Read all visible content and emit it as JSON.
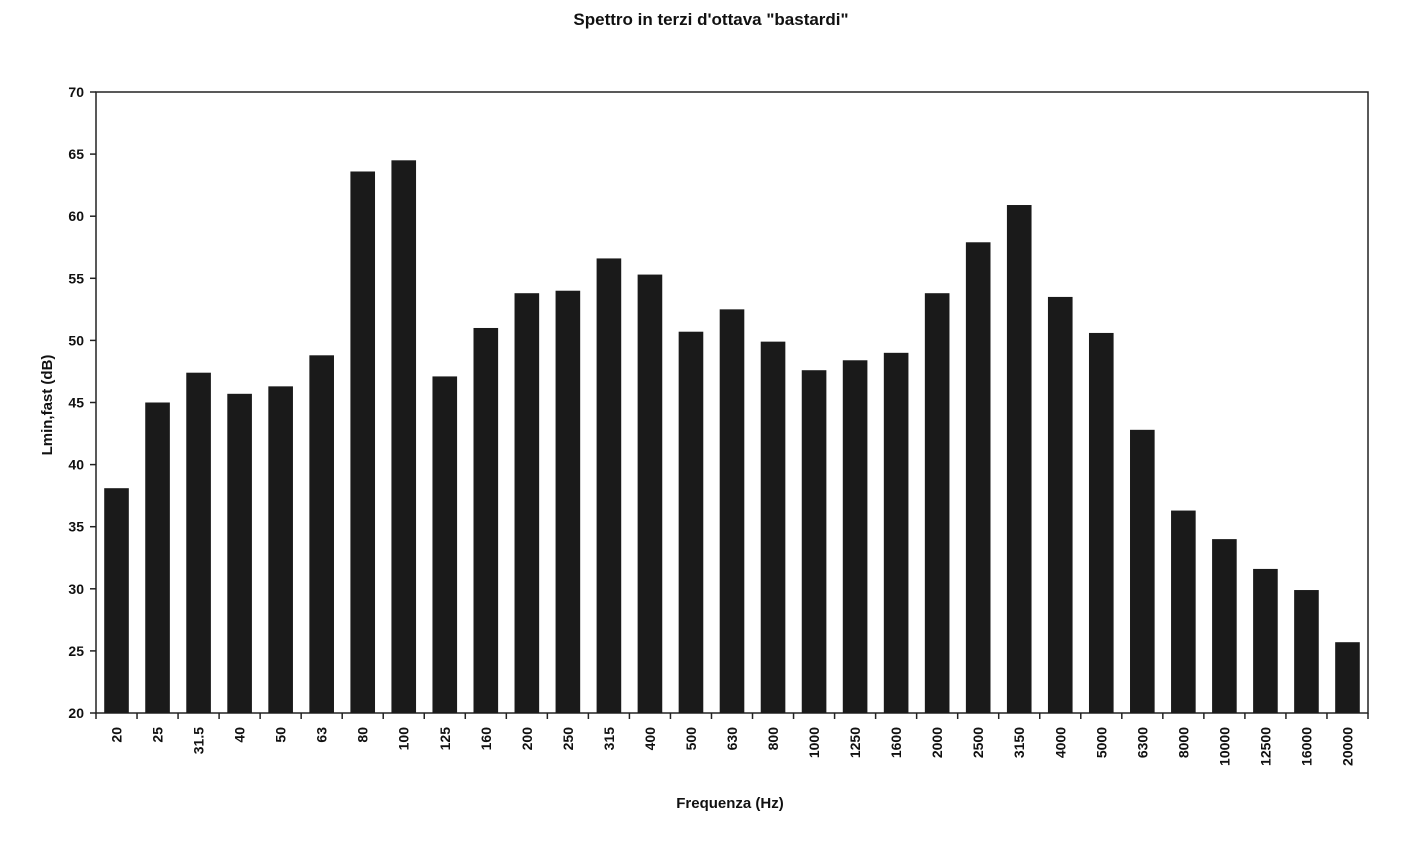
{
  "chart_data": {
    "type": "bar",
    "title": "Spettro in terzi d'ottava \"bastardi\"",
    "xlabel": "Frequenza (Hz)",
    "ylabel": "Lmin,fast (dB)",
    "ylim": [
      20,
      70
    ],
    "yticks": [
      20,
      25,
      30,
      35,
      40,
      45,
      50,
      55,
      60,
      65,
      70
    ],
    "grid": false,
    "legend": "none",
    "bar_color": "#1a1a1a",
    "categories": [
      "20",
      "25",
      "31.5",
      "40",
      "50",
      "63",
      "80",
      "100",
      "125",
      "160",
      "200",
      "250",
      "315",
      "400",
      "500",
      "630",
      "800",
      "1000",
      "1250",
      "1600",
      "2000",
      "2500",
      "3150",
      "4000",
      "5000",
      "6300",
      "8000",
      "10000",
      "12500",
      "16000",
      "20000"
    ],
    "series": [
      {
        "values": [
          38.1,
          45.0,
          47.4,
          45.7,
          46.3,
          48.8,
          63.6,
          64.5,
          47.1,
          51.0,
          53.8,
          54.0,
          56.6,
          55.3,
          50.7,
          52.5,
          49.9,
          47.6,
          48.4,
          49.0,
          53.8,
          57.9,
          60.9,
          53.5,
          50.6,
          42.8,
          36.3,
          34.0,
          31.6,
          29.9,
          25.7
        ]
      }
    ]
  }
}
